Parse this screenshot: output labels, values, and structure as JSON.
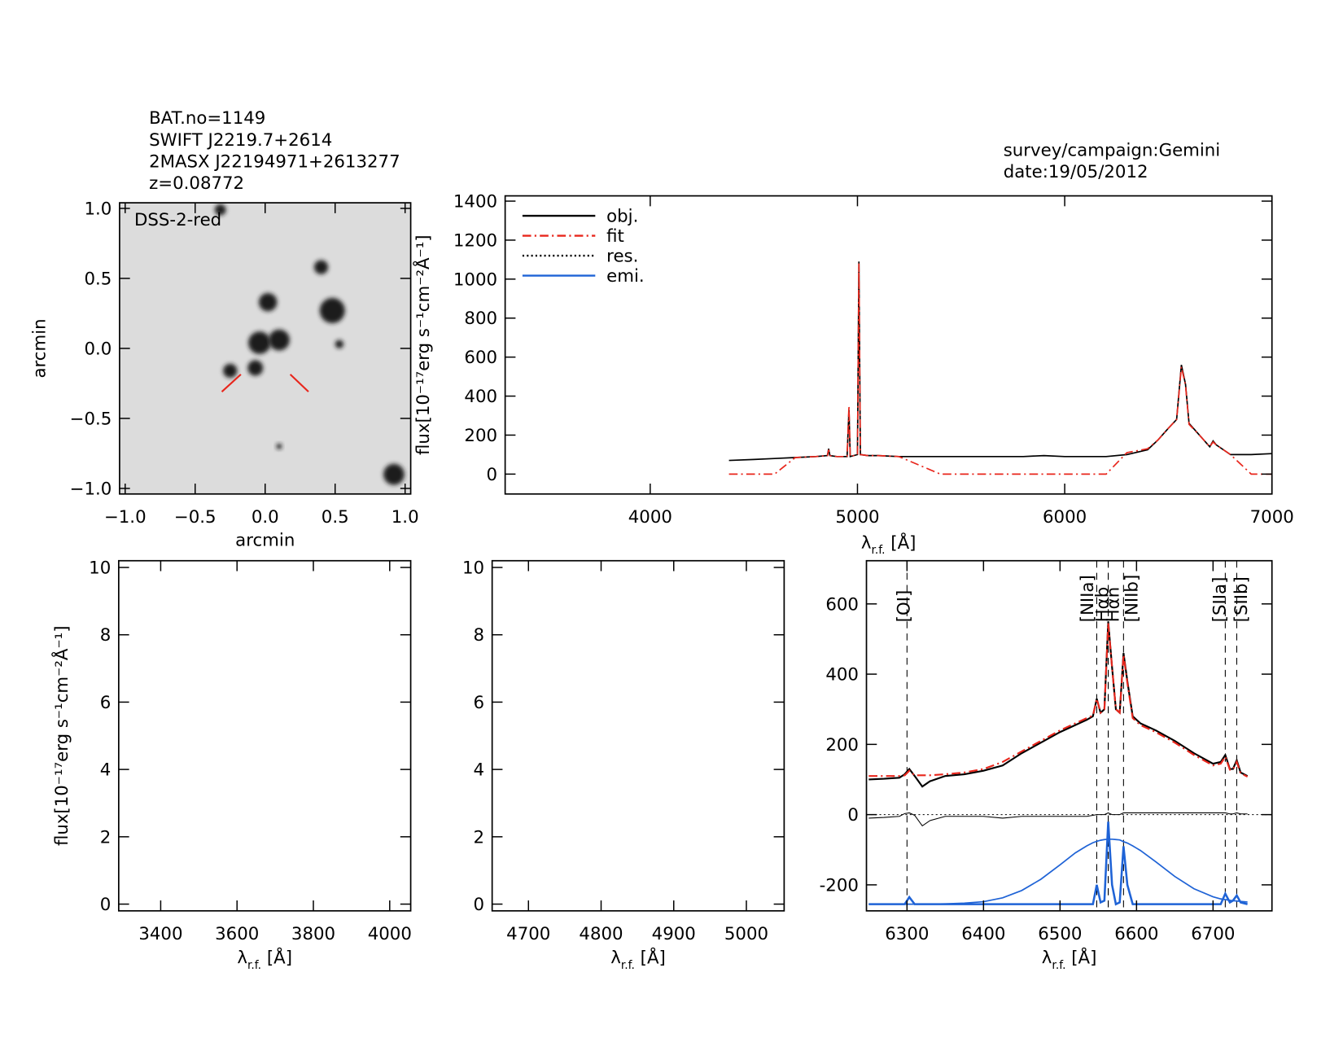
{
  "header": [
    "BAT.no=1149",
    "SWIFT J2219.7+2614",
    "2MASX J22194971+2613277",
    "z=0.08772"
  ],
  "survey": "survey/campaign:Gemini",
  "date": "date:19/05/2012",
  "chart_data": [
    {
      "type": "scatter",
      "label": "DSS-2-red",
      "xlabel": "arcmin",
      "ylabel": "arcmin",
      "xlim": [
        -1.04,
        1.04
      ],
      "ylim": [
        -1.04,
        1.04
      ],
      "xticks": [
        {
          "value": -1,
          "label": "−1.0"
        },
        {
          "value": -0.5,
          "label": "−0.5"
        },
        {
          "value": 0,
          "label": "0.0"
        },
        {
          "value": 0.5,
          "label": "0.5"
        },
        {
          "value": 1,
          "label": "1.0"
        }
      ],
      "yticks": [
        {
          "value": -1,
          "label": "−1.0"
        },
        {
          "value": -0.5,
          "label": "−0.5"
        },
        {
          "value": 0,
          "label": "0.0"
        },
        {
          "value": 0.5,
          "label": "0.5"
        },
        {
          "value": 1,
          "label": "1.0"
        }
      ],
      "x": [
        -0.32,
        0.4,
        0.48,
        0.02,
        -0.04,
        0.1,
        -0.07,
        -0.25,
        0.53,
        0.92,
        0.1
      ],
      "y": [
        0.99,
        0.58,
        0.27,
        0.33,
        0.04,
        0.06,
        -0.14,
        -0.16,
        0.03,
        -0.9,
        -0.7
      ],
      "sizes": [
        0.04,
        0.05,
        0.09,
        0.065,
        0.08,
        0.075,
        0.055,
        0.05,
        0.03,
        0.075,
        0.02
      ],
      "color": "#1a1a1a"
    },
    {
      "type": "line",
      "xlabel": [
        "λ",
        "r.f.",
        " [Å]"
      ],
      "ylabel": "flux[10⁻¹⁷erg s⁻¹cm⁻²Å⁻¹]",
      "xlim": [
        3300,
        7000
      ],
      "ylim": [
        -102,
        1427
      ],
      "xticks": [
        4000,
        5000,
        6000,
        7000
      ],
      "yticks": [
        0,
        200,
        400,
        600,
        800,
        1000,
        1200,
        1400
      ],
      "legend": [
        {
          "name": "obj.",
          "color": "#000000",
          "dash": "solid"
        },
        {
          "name": "fit",
          "color": "#e8261c",
          "dash": "dashdot"
        },
        {
          "name": "res.",
          "color": "#000000",
          "dash": "dotted"
        },
        {
          "name": "emi.",
          "color": "#1f63d6",
          "dash": "solid"
        }
      ],
      "x": [
        4380,
        4500,
        4600,
        4700,
        4800,
        4855,
        4861,
        4867,
        4900,
        4950,
        4959,
        4965,
        5000,
        5007,
        5014,
        5050,
        5100,
        5200,
        5400,
        5600,
        5800,
        5900,
        6000,
        6100,
        6200,
        6300,
        6400,
        6450,
        6500,
        6540,
        6563,
        6583,
        6600,
        6650,
        6700,
        6716,
        6731,
        6800,
        6900,
        7000
      ],
      "series": [
        {
          "color": "#000000",
          "dash": "solid",
          "width": 1.6,
          "values": [
            70,
            75,
            80,
            85,
            90,
            95,
            130,
            95,
            90,
            90,
            330,
            90,
            100,
            1090,
            100,
            95,
            95,
            90,
            90,
            90,
            90,
            95,
            90,
            90,
            90,
            100,
            125,
            175,
            235,
            280,
            560,
            460,
            260,
            200,
            140,
            170,
            150,
            100,
            100,
            105
          ]
        },
        {
          "color": "#e8261c",
          "dash": "dashdot",
          "width": 1.6,
          "values": [
            0,
            0,
            0,
            85,
            90,
            95,
            125,
            95,
            90,
            90,
            350,
            90,
            100,
            1080,
            100,
            95,
            95,
            90,
            0,
            0,
            0,
            0,
            0,
            0,
            0,
            110,
            130,
            175,
            235,
            280,
            550,
            455,
            255,
            200,
            140,
            165,
            150,
            100,
            0,
            0
          ]
        }
      ]
    },
    {
      "type": "line",
      "xlabel": [
        "λ",
        "r.f.",
        " [Å]"
      ],
      "ylabel": "flux[10⁻¹⁷erg s⁻¹cm⁻²Å⁻¹]",
      "xlim": [
        3290,
        4055
      ],
      "ylim": [
        -0.2,
        10.2
      ],
      "xticks": [
        3400,
        3600,
        3800,
        4000
      ],
      "yticks": [
        0,
        2,
        4,
        6,
        8,
        10
      ]
    },
    {
      "type": "line",
      "xlabel": [
        "λ",
        "r.f.",
        " [Å]"
      ],
      "xlim": [
        4650,
        5052
      ],
      "ylim": [
        -0.2,
        10.2
      ],
      "xticks": [
        4700,
        4800,
        4900,
        5000
      ],
      "yticks": [
        0,
        2,
        4,
        6,
        8,
        10
      ]
    },
    {
      "type": "line",
      "xlabel": [
        "λ",
        "r.f.",
        " [Å]"
      ],
      "xlim": [
        6247,
        6777
      ],
      "ylim": [
        -274,
        723
      ],
      "xticks": [
        6300,
        6400,
        6500,
        6600,
        6700
      ],
      "yticks": [
        -200,
        0,
        200,
        400,
        600
      ],
      "lines": [
        {
          "label": "[OI]",
          "x": 6300
        },
        {
          "label": "[NIIa]",
          "x": 6548
        },
        {
          "label": "Hαb",
          "x": 6563
        },
        {
          "label": "Hαn",
          "x": 6563
        },
        {
          "label": "[NIIb]",
          "x": 6583
        },
        {
          "label": "[SIIa]",
          "x": 6716
        },
        {
          "label": "[SIIb]",
          "x": 6731
        }
      ],
      "x": [
        6250,
        6270,
        6290,
        6297,
        6303,
        6310,
        6320,
        6330,
        6350,
        6375,
        6400,
        6425,
        6450,
        6475,
        6500,
        6520,
        6535,
        6543,
        6548,
        6553,
        6558,
        6563,
        6568,
        6573,
        6578,
        6583,
        6588,
        6595,
        6605,
        6625,
        6650,
        6675,
        6700,
        6710,
        6716,
        6722,
        6726,
        6731,
        6736,
        6745
      ],
      "series": [
        {
          "color": "#000000",
          "dash": "solid",
          "width": 2,
          "values": [
            100,
            102,
            105,
            115,
            130,
            110,
            80,
            95,
            110,
            115,
            125,
            140,
            175,
            205,
            235,
            255,
            270,
            280,
            330,
            290,
            300,
            550,
            420,
            300,
            290,
            460,
            380,
            280,
            260,
            240,
            210,
            175,
            145,
            150,
            170,
            130,
            130,
            155,
            120,
            110
          ]
        },
        {
          "color": "#e8261c",
          "dash": "dashdot",
          "width": 2,
          "values": [
            110,
            110,
            110,
            112,
            125,
            112,
            112,
            112,
            115,
            120,
            130,
            150,
            180,
            210,
            240,
            260,
            275,
            282,
            330,
            290,
            300,
            545,
            420,
            300,
            290,
            455,
            375,
            275,
            255,
            235,
            205,
            170,
            140,
            145,
            165,
            128,
            128,
            150,
            118,
            108
          ]
        },
        {
          "color": "#000000",
          "dash": "solid",
          "width": 1,
          "values": [
            -10,
            -8,
            -5,
            3,
            5,
            -2,
            -32,
            -17,
            -5,
            -5,
            -5,
            -10,
            -5,
            -5,
            -5,
            -5,
            -5,
            -2,
            0,
            0,
            0,
            5,
            0,
            0,
            0,
            5,
            5,
            5,
            5,
            5,
            5,
            5,
            5,
            5,
            5,
            2,
            2,
            5,
            2,
            2
          ]
        },
        {
          "color": "#1f63d6",
          "dash": "solid",
          "width": 1.6,
          "values": [
            -255,
            -255,
            -255,
            -255,
            -255,
            -255,
            -255,
            -255,
            -254,
            -252,
            -248,
            -237,
            -216,
            -184,
            -143,
            -109,
            -89,
            -80,
            -76,
            -73,
            -71,
            -70,
            -70,
            -71,
            -72,
            -77,
            -81,
            -89,
            -102,
            -134,
            -176,
            -211,
            -234,
            -240,
            -242,
            -244,
            -245,
            -246,
            -247,
            -249
          ]
        },
        {
          "color": "#1f63d6",
          "dash": "solid",
          "width": 2.4,
          "values": [
            -255,
            -255,
            -255,
            -255,
            -235,
            -255,
            -255,
            -255,
            -255,
            -255,
            -255,
            -255,
            -255,
            -255,
            -255,
            -255,
            -255,
            -255,
            -200,
            -250,
            -245,
            -20,
            -200,
            -255,
            -250,
            -90,
            -200,
            -255,
            -255,
            -255,
            -255,
            -255,
            -255,
            -255,
            -225,
            -250,
            -245,
            -230,
            -250,
            -255
          ]
        }
      ]
    }
  ]
}
